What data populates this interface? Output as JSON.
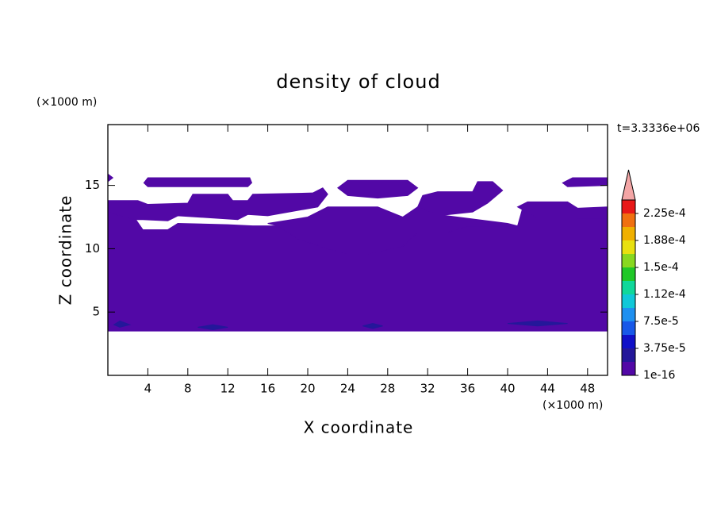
{
  "chart_data": {
    "type": "contour",
    "title": "density of cloud",
    "x_label": "X coordinate",
    "y_label": "Z coordinate",
    "x_unit": "(×1000 m)",
    "y_unit": "(×1000 m)",
    "annotation": "t=3.3336e+06",
    "xlim": [
      0,
      50
    ],
    "ylim": [
      0,
      19.8
    ],
    "xticks": [
      4,
      8,
      12,
      16,
      20,
      24,
      28,
      32,
      36,
      40,
      44,
      48
    ],
    "yticks": [
      5,
      10,
      15
    ],
    "regions": [
      {
        "color": "#5208a6",
        "x": [
          0,
          50,
          50,
          47,
          43,
          41.5,
          41,
          36,
          34,
          31,
          29.5,
          26,
          24,
          22,
          19,
          17,
          14.5,
          12,
          7,
          6,
          3.5,
          2.8,
          0
        ],
        "y": [
          3.5,
          3.5,
          12.4,
          12.4,
          13.2,
          13.2,
          11.8,
          11.8,
          11.3,
          11.3,
          10.2,
          9.6,
          9.6,
          10,
          10.8,
          11.8,
          11.8,
          11.9,
          12,
          11.5,
          11.5,
          12.3,
          12.9
        ]
      },
      {
        "color": "#5208a6",
        "x": [
          0,
          0,
          3,
          4,
          8,
          8.5,
          12,
          12.5,
          14,
          14.5,
          20.5,
          21.5,
          22,
          21,
          16,
          14,
          13,
          7,
          6,
          3.5,
          2.8
        ],
        "y": [
          12.9,
          13.8,
          13.8,
          13.5,
          13.6,
          14.3,
          14.3,
          13.8,
          13.8,
          14.3,
          14.4,
          14.8,
          14.3,
          13.3,
          12.6,
          12.7,
          12.3,
          12.6,
          12.2,
          12.3,
          12.3
        ]
      },
      {
        "color": "#5208a6",
        "x": [
          3.6,
          4,
          14.2,
          14.4,
          14,
          4
        ],
        "y": [
          15.2,
          15.6,
          15.6,
          15.2,
          14.9,
          14.9
        ]
      },
      {
        "color": "#5208a6",
        "x": [
          0,
          0.5,
          0
        ],
        "y": [
          15.3,
          15.6,
          15.9
        ]
      },
      {
        "color": "#5208a6",
        "x": [
          23,
          24,
          30,
          31,
          30,
          27,
          24
        ],
        "y": [
          14.8,
          15.4,
          15.4,
          14.8,
          14.2,
          14,
          14.2
        ]
      },
      {
        "color": "#5208a6",
        "x": [
          31.5,
          33,
          36.5,
          37,
          38.5,
          39.5,
          38,
          36.5,
          33,
          31
        ],
        "y": [
          14.2,
          14.5,
          14.5,
          15.3,
          15.3,
          14.6,
          13.6,
          12.9,
          12.6,
          13.3
        ]
      },
      {
        "color": "#5208a6",
        "x": [
          16,
          20,
          22,
          27,
          29.5,
          31,
          33,
          37,
          40,
          41,
          36,
          34,
          31,
          29.5,
          26,
          24,
          22,
          19,
          17
        ],
        "y": [
          12,
          12.5,
          13.3,
          13.3,
          12.5,
          13.3,
          12.7,
          12.3,
          12,
          11.8,
          11.8,
          11.3,
          11.3,
          10.2,
          9.6,
          9.6,
          10,
          10.8,
          11.8
        ]
      },
      {
        "color": "#5208a6",
        "x": [
          45.5,
          46.5,
          50,
          50,
          46
        ],
        "y": [
          15.2,
          15.6,
          15.6,
          15,
          14.9
        ]
      },
      {
        "color": "#5208a6",
        "x": [
          41,
          42,
          46,
          47,
          50,
          50,
          43
        ],
        "y": [
          13.3,
          13.7,
          13.7,
          13.2,
          13.3,
          12.4,
          12.4
        ]
      },
      {
        "color": "#24179a",
        "x": [
          0.6,
          1.2,
          2.2,
          1.2
        ],
        "y": [
          4.0,
          4.3,
          4.0,
          3.8
        ]
      },
      {
        "color": "#24179a",
        "x": [
          9,
          10.5,
          12,
          10.5
        ],
        "y": [
          3.8,
          4.0,
          3.8,
          3.6
        ]
      },
      {
        "color": "#24179a",
        "x": [
          25.5,
          26.5,
          27.5,
          26.5
        ],
        "y": [
          3.9,
          4.1,
          3.9,
          3.7
        ]
      },
      {
        "color": "#24179a",
        "x": [
          40,
          43,
          46,
          43
        ],
        "y": [
          4.1,
          4.3,
          4.1,
          3.9
        ]
      }
    ],
    "colorbar": {
      "levels": [
        1e-16,
        1.875e-05,
        3.75e-05,
        5.625e-05,
        7.5e-05,
        9.375e-05,
        0.0001125,
        0.00013125,
        0.00015,
        0.00016875,
        0.0001875,
        0.00020625,
        0.000225,
        0.00024375
      ],
      "colors": [
        "#5208a6",
        "#24179a",
        "#1010c8",
        "#1858e8",
        "#1e90f0",
        "#10c8d8",
        "#10d89a",
        "#20c828",
        "#88d820",
        "#e8e010",
        "#f0b000",
        "#f07010",
        "#e81818"
      ],
      "extend_color": "#f4a6a6",
      "ticks": [
        1e-16,
        {
          "value": 3.75e-05,
          "label": "3.75e-5"
        },
        {
          "value": 7.5e-05,
          "label": "7.5e-5"
        },
        {
          "value": 0.0001125,
          "label": "1.12e-4"
        },
        {
          "value": 0.00015,
          "label": "1.5e-4"
        },
        {
          "value": 0.0001875,
          "label": "1.88e-4"
        },
        {
          "value": 0.000225,
          "label": "2.25e-4"
        }
      ]
    }
  }
}
